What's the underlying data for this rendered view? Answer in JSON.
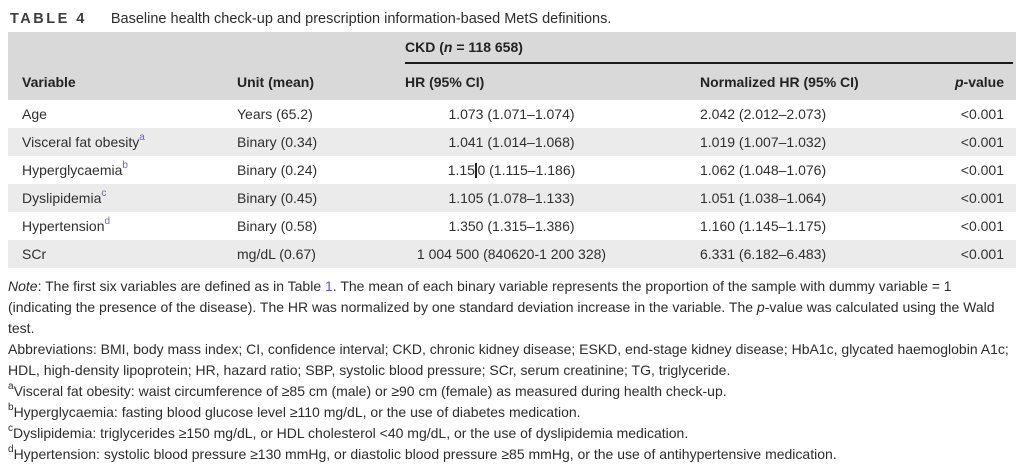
{
  "colors": {
    "header_band_bg": "#d9d9d9",
    "row_alt_bg": "#ebebeb",
    "rule_black": "#1c1c1c",
    "link_blue": "#5659c8",
    "superscript_blue": "#6b63cf",
    "text": "#2f2f2f"
  },
  "title": {
    "label": "TABLE 4",
    "text": "Baseline health check-up and prescription information-based MetS definitions."
  },
  "table": {
    "group_header": {
      "pre": "CKD (",
      "n_italic": "n",
      "post": " = 118 658)"
    },
    "columns": {
      "variable": "Variable",
      "unit": "Unit (mean)",
      "hr": "HR (95% CI)",
      "normalized_hr": "Normalized HR (95% CI)",
      "pvalue_italic": "p",
      "pvalue_rest": "-value"
    },
    "rows": [
      {
        "variable": "Age",
        "sup": "",
        "unit": "Years (65.2)",
        "hr": "1.073 (1.071–1.074)",
        "normalized_hr": "2.042 (2.012–2.073)",
        "pvalue": "<0.001"
      },
      {
        "variable": "Visceral fat obesity",
        "sup": "a",
        "unit": "Binary (0.34)",
        "hr": "1.041 (1.014–1.068)",
        "normalized_hr": "1.019 (1.007–1.032)",
        "pvalue": "<0.001"
      },
      {
        "variable": "Hyperglycaemia",
        "sup": "b",
        "unit": "Binary (0.24)",
        "hr_before_caret": "1.15",
        "hr_after_caret": "0 (1.115–1.186)",
        "normalized_hr": "1.062 (1.048–1.076)",
        "pvalue": "<0.001"
      },
      {
        "variable": "Dyslipidemia",
        "sup": "c",
        "unit": "Binary (0.45)",
        "hr": "1.105 (1.078–1.133)",
        "normalized_hr": "1.051 (1.038–1.064)",
        "pvalue": "<0.001"
      },
      {
        "variable": "Hypertension",
        "sup": "d",
        "unit": "Binary (0.58)",
        "hr": "1.350 (1.315–1.386)",
        "normalized_hr": "1.160 (1.145–1.175)",
        "pvalue": "<0.001"
      },
      {
        "variable": "SCr",
        "sup": "",
        "unit": "mg/dL (0.67)",
        "hr": "1 004 500 (840620-1 200 328)",
        "normalized_hr": "6.331 (6.182–6.483)",
        "pvalue": "<0.001"
      }
    ]
  },
  "notes": {
    "note": {
      "label": "Note",
      "part1": ": The first six variables are defined as in Table ",
      "link": "1",
      "part2": ". The mean of each binary variable represents the proportion of the sample with dummy variable = 1 (indicating the presence of the disease). The HR was normalized by one standard deviation increase in the variable. The ",
      "p_italic": "p",
      "part3": "-value was calculated using the Wald test."
    },
    "abbreviations": "Abbreviations: BMI, body mass index; CI, confidence interval; CKD, chronic kidney disease; ESKD, end-stage kidney disease; HbA1c, glycated haemoglobin A1c; HDL, high-density lipoprotein; HR, hazard ratio; SBP, systolic blood pressure; SCr, serum creatinine; TG, triglyceride.",
    "footnotes": [
      {
        "sup": "a",
        "text": "Visceral fat obesity: waist circumference of ≥85 cm (male) or ≥90 cm (female) as measured during health check-up."
      },
      {
        "sup": "b",
        "text": "Hyperglycaemia: fasting blood glucose level ≥110 mg/dL, or the use of diabetes medication."
      },
      {
        "sup": "c",
        "text": "Dyslipidemia: triglycerides ≥150 mg/dL, or HDL cholesterol <40 mg/dL, or the use of dyslipidemia medication."
      },
      {
        "sup": "d",
        "text": "Hypertension: systolic blood pressure ≥130 mmHg, or diastolic blood pressure ≥85 mmHg, or the use of antihypertensive medication."
      }
    ]
  }
}
